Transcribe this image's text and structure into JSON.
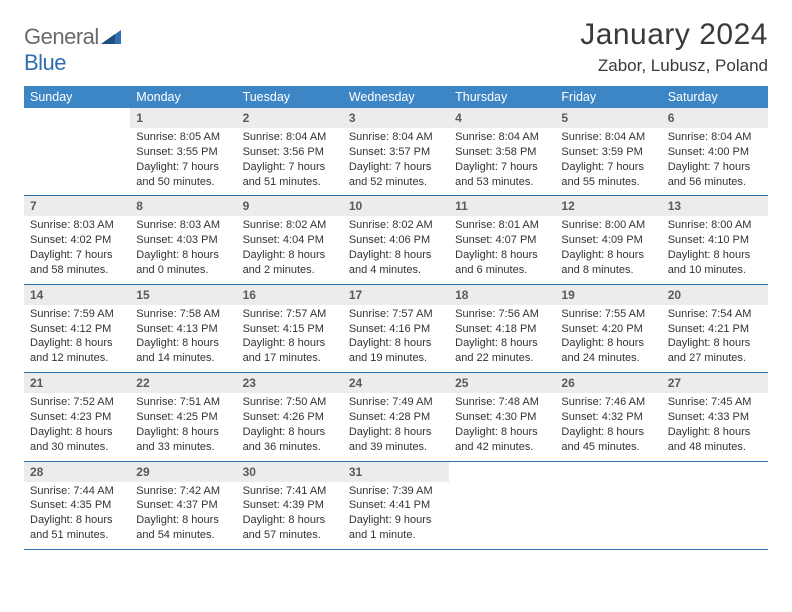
{
  "logo": {
    "word1": "General",
    "word2": "Blue"
  },
  "title": "January 2024",
  "location": "Zabor, Lubusz, Poland",
  "colors": {
    "header_bg": "#3d86c6",
    "header_text": "#ffffff",
    "daynum_bg": "#ececec",
    "daynum_text": "#5a5a5a",
    "row_border": "#2f6fb0",
    "body_text": "#333333",
    "logo_gray": "#6a6a6a",
    "logo_blue": "#2f6fb0",
    "page_bg": "#ffffff"
  },
  "dow": [
    "Sunday",
    "Monday",
    "Tuesday",
    "Wednesday",
    "Thursday",
    "Friday",
    "Saturday"
  ],
  "weeks": [
    [
      null,
      {
        "n": "1",
        "sunrise": "8:05 AM",
        "sunset": "3:55 PM",
        "daylight": "7 hours and 50 minutes."
      },
      {
        "n": "2",
        "sunrise": "8:04 AM",
        "sunset": "3:56 PM",
        "daylight": "7 hours and 51 minutes."
      },
      {
        "n": "3",
        "sunrise": "8:04 AM",
        "sunset": "3:57 PM",
        "daylight": "7 hours and 52 minutes."
      },
      {
        "n": "4",
        "sunrise": "8:04 AM",
        "sunset": "3:58 PM",
        "daylight": "7 hours and 53 minutes."
      },
      {
        "n": "5",
        "sunrise": "8:04 AM",
        "sunset": "3:59 PM",
        "daylight": "7 hours and 55 minutes."
      },
      {
        "n": "6",
        "sunrise": "8:04 AM",
        "sunset": "4:00 PM",
        "daylight": "7 hours and 56 minutes."
      }
    ],
    [
      {
        "n": "7",
        "sunrise": "8:03 AM",
        "sunset": "4:02 PM",
        "daylight": "7 hours and 58 minutes."
      },
      {
        "n": "8",
        "sunrise": "8:03 AM",
        "sunset": "4:03 PM",
        "daylight": "8 hours and 0 minutes."
      },
      {
        "n": "9",
        "sunrise": "8:02 AM",
        "sunset": "4:04 PM",
        "daylight": "8 hours and 2 minutes."
      },
      {
        "n": "10",
        "sunrise": "8:02 AM",
        "sunset": "4:06 PM",
        "daylight": "8 hours and 4 minutes."
      },
      {
        "n": "11",
        "sunrise": "8:01 AM",
        "sunset": "4:07 PM",
        "daylight": "8 hours and 6 minutes."
      },
      {
        "n": "12",
        "sunrise": "8:00 AM",
        "sunset": "4:09 PM",
        "daylight": "8 hours and 8 minutes."
      },
      {
        "n": "13",
        "sunrise": "8:00 AM",
        "sunset": "4:10 PM",
        "daylight": "8 hours and 10 minutes."
      }
    ],
    [
      {
        "n": "14",
        "sunrise": "7:59 AM",
        "sunset": "4:12 PM",
        "daylight": "8 hours and 12 minutes."
      },
      {
        "n": "15",
        "sunrise": "7:58 AM",
        "sunset": "4:13 PM",
        "daylight": "8 hours and 14 minutes."
      },
      {
        "n": "16",
        "sunrise": "7:57 AM",
        "sunset": "4:15 PM",
        "daylight": "8 hours and 17 minutes."
      },
      {
        "n": "17",
        "sunrise": "7:57 AM",
        "sunset": "4:16 PM",
        "daylight": "8 hours and 19 minutes."
      },
      {
        "n": "18",
        "sunrise": "7:56 AM",
        "sunset": "4:18 PM",
        "daylight": "8 hours and 22 minutes."
      },
      {
        "n": "19",
        "sunrise": "7:55 AM",
        "sunset": "4:20 PM",
        "daylight": "8 hours and 24 minutes."
      },
      {
        "n": "20",
        "sunrise": "7:54 AM",
        "sunset": "4:21 PM",
        "daylight": "8 hours and 27 minutes."
      }
    ],
    [
      {
        "n": "21",
        "sunrise": "7:52 AM",
        "sunset": "4:23 PM",
        "daylight": "8 hours and 30 minutes."
      },
      {
        "n": "22",
        "sunrise": "7:51 AM",
        "sunset": "4:25 PM",
        "daylight": "8 hours and 33 minutes."
      },
      {
        "n": "23",
        "sunrise": "7:50 AM",
        "sunset": "4:26 PM",
        "daylight": "8 hours and 36 minutes."
      },
      {
        "n": "24",
        "sunrise": "7:49 AM",
        "sunset": "4:28 PM",
        "daylight": "8 hours and 39 minutes."
      },
      {
        "n": "25",
        "sunrise": "7:48 AM",
        "sunset": "4:30 PM",
        "daylight": "8 hours and 42 minutes."
      },
      {
        "n": "26",
        "sunrise": "7:46 AM",
        "sunset": "4:32 PM",
        "daylight": "8 hours and 45 minutes."
      },
      {
        "n": "27",
        "sunrise": "7:45 AM",
        "sunset": "4:33 PM",
        "daylight": "8 hours and 48 minutes."
      }
    ],
    [
      {
        "n": "28",
        "sunrise": "7:44 AM",
        "sunset": "4:35 PM",
        "daylight": "8 hours and 51 minutes."
      },
      {
        "n": "29",
        "sunrise": "7:42 AM",
        "sunset": "4:37 PM",
        "daylight": "8 hours and 54 minutes."
      },
      {
        "n": "30",
        "sunrise": "7:41 AM",
        "sunset": "4:39 PM",
        "daylight": "8 hours and 57 minutes."
      },
      {
        "n": "31",
        "sunrise": "7:39 AM",
        "sunset": "4:41 PM",
        "daylight": "9 hours and 1 minute."
      },
      null,
      null,
      null
    ]
  ],
  "labels": {
    "sunrise": "Sunrise: ",
    "sunset": "Sunset: ",
    "daylight": "Daylight: "
  }
}
